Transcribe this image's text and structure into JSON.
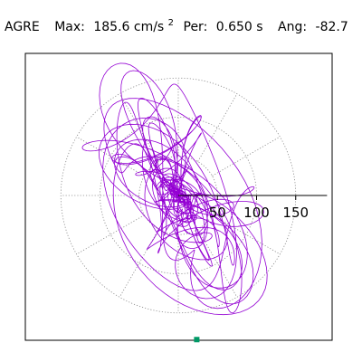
{
  "header": {
    "station": "AGRE",
    "max_label": "Max:",
    "max_value": "185.6 cm/s",
    "max_unit_superscript": "2",
    "per_label": "Per:",
    "per_value": "0.650 s",
    "ang_label": "Ang:",
    "ang_value": "-82.7"
  },
  "chart_data": {
    "type": "polar-orbit",
    "title": "AGRE   Max:  185.6 cm/s2  Per:  0.650 s   Ang: -82.7",
    "max_amplitude": 185.6,
    "max_angle_deg": -82.7,
    "period_s": 0.65,
    "radial_ticks": [
      50,
      100,
      150
    ],
    "radial_tick_labels": [
      "50",
      "100",
      "150"
    ],
    "angular_grid_deg": [
      0,
      30,
      60,
      90,
      120,
      150,
      180,
      210,
      240,
      270,
      300,
      330
    ],
    "grid": "dotted",
    "trace_color": "#9400d3",
    "max_marker_color": "#009966",
    "x_axis_positive_range": [
      0,
      190
    ]
  }
}
